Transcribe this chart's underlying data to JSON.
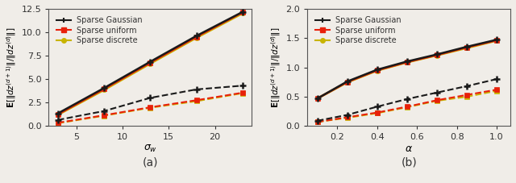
{
  "plot_a": {
    "x": [
      3,
      8,
      13,
      18,
      23
    ],
    "sparse_gaussian_solid": [
      1.35,
      4.05,
      6.85,
      9.6,
      12.15
    ],
    "sparse_uniform_solid": [
      1.25,
      3.95,
      6.75,
      9.5,
      12.1
    ],
    "sparse_discrete_solid": [
      1.2,
      3.85,
      6.65,
      9.4,
      12.0
    ],
    "sparse_gaussian_dashed": [
      0.65,
      1.6,
      3.0,
      3.9,
      4.3
    ],
    "sparse_uniform_dashed": [
      0.35,
      1.15,
      2.0,
      2.75,
      3.55
    ],
    "sparse_discrete_dashed": [
      0.3,
      1.1,
      1.95,
      2.65,
      3.5
    ],
    "xlabel": "$\\sigma_w$",
    "ylabel": "$\\mathbf{E}[\\|dz^{(d+1)}\\|/\\|dz^{(d)}\\|]$",
    "ylim": [
      0,
      12.5
    ],
    "xlim": [
      2.0,
      24.0
    ],
    "xticks": [
      5,
      10,
      15,
      20
    ],
    "yticks": [
      0.0,
      2.5,
      5.0,
      7.5,
      10.0,
      12.5
    ],
    "label": "(a)"
  },
  "plot_b": {
    "x": [
      0.1,
      0.25,
      0.4,
      0.55,
      0.7,
      0.85,
      1.0
    ],
    "sparse_gaussian_solid": [
      0.47,
      0.76,
      0.96,
      1.1,
      1.22,
      1.35,
      1.47
    ],
    "sparse_uniform_solid": [
      0.47,
      0.75,
      0.95,
      1.09,
      1.21,
      1.34,
      1.46
    ],
    "sparse_discrete_solid": [
      0.47,
      0.745,
      0.945,
      1.085,
      1.205,
      1.33,
      1.455
    ],
    "sparse_gaussian_dashed": [
      0.09,
      0.19,
      0.33,
      0.46,
      0.57,
      0.68,
      0.8
    ],
    "sparse_uniform_dashed": [
      0.07,
      0.15,
      0.23,
      0.33,
      0.44,
      0.53,
      0.62
    ],
    "sparse_discrete_dashed": [
      0.07,
      0.14,
      0.22,
      0.32,
      0.43,
      0.5,
      0.6
    ],
    "xlabel": "$\\alpha$",
    "ylabel": "$\\mathbf{E}[\\|dz^{(d+1)}\\|/\\|dz^{(d)}\\|]$",
    "ylim": [
      0,
      2.0
    ],
    "xlim": [
      0.05,
      1.07
    ],
    "xticks": [
      0.2,
      0.4,
      0.6,
      0.8,
      1.0
    ],
    "yticks": [
      0.0,
      0.5,
      1.0,
      1.5,
      2.0
    ],
    "label": "(b)"
  },
  "colors": {
    "black": "#1a1a1a",
    "red": "#e8200a",
    "yellow": "#c8b400"
  },
  "legend": {
    "sparse_gaussian": "Sparse Gaussian",
    "sparse_uniform": "Sparse uniform",
    "sparse_discrete": "Sparse discrete"
  },
  "fig_facecolor": "#f0ede8",
  "axes_facecolor": "#f0ede8"
}
